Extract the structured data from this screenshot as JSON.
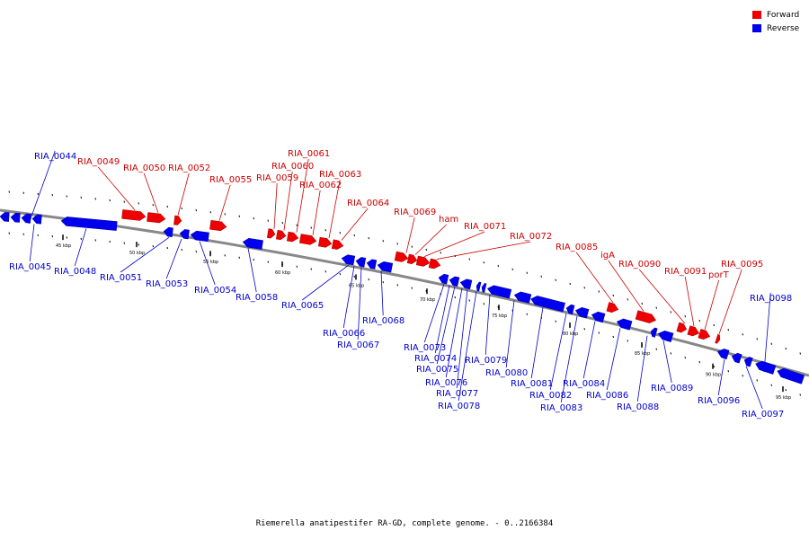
{
  "title": "Riemerella anatipestifer RA-GD, complete genome. - 0..2166384",
  "legend": [
    {
      "label": "Forward",
      "color": "#ee0000"
    },
    {
      "label": "Reverse",
      "color": "#0000ee"
    }
  ],
  "colors": {
    "forward": "#ee0000",
    "reverse": "#0000ee",
    "backbone": "#888888"
  },
  "kbp_labels": [
    "45 kbp",
    "50 kbp",
    "55 kbp",
    "60 kbp",
    "65 kbp",
    "70 kbp",
    "75 kbp",
    "80 kbp",
    "85 kbp",
    "90 kbp",
    "95 kbp"
  ],
  "forward_genes": [
    "RIA_0049",
    "RIA_0050",
    "RIA_0052",
    "RIA_0055",
    "RIA_0059",
    "RIA_0060",
    "RIA_0061",
    "RIA_0062",
    "RIA_0063",
    "RIA_0064",
    "RIA_0069",
    "ham",
    "RIA_0071",
    "RIA_0072",
    "RIA_0085",
    "igA",
    "RIA_0090",
    "RIA_0091",
    "porT",
    "RIA_0095"
  ],
  "reverse_genes": [
    "RIA_0044",
    "RIA_0045",
    "RIA_0048",
    "RIA_0051",
    "RIA_0053",
    "RIA_0054",
    "RIA_0058",
    "RIA_0065",
    "RIA_0066",
    "RIA_0067",
    "RIA_0068",
    "RIA_0073",
    "RIA_0074",
    "RIA_0075",
    "RIA_0076",
    "RIA_0077",
    "RIA_0078",
    "RIA_0079",
    "RIA_0080",
    "RIA_0081",
    "RIA_0082",
    "RIA_0083",
    "RIA_0084",
    "RIA_0086",
    "RIA_0088",
    "RIA_0089",
    "RIA_0096",
    "RIA_0097",
    "RIA_0098"
  ]
}
